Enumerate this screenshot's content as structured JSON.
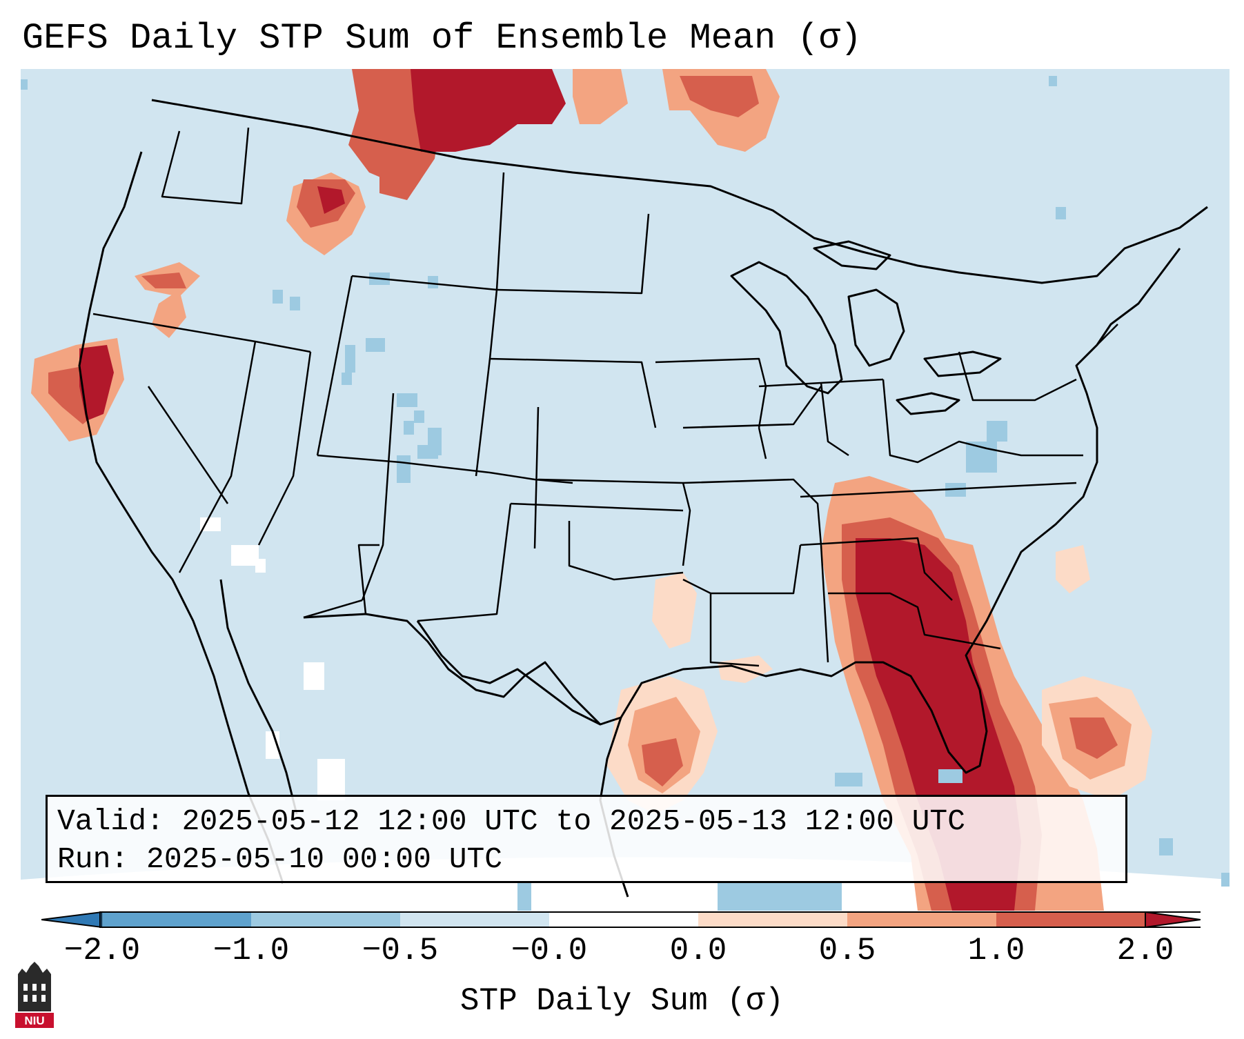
{
  "title": "GEFS Daily STP Sum of Ensemble Mean (σ)",
  "info": {
    "valid_label": "Valid:",
    "valid_value": "2025-05-12 12:00 UTC to 2025-05-13 12:00 UTC",
    "run_label": "Run:",
    "run_value": "2025-05-10 00:00 UTC"
  },
  "colorbar": {
    "label": "STP Daily Sum (σ)",
    "ticks": [
      "−2.0",
      "−1.0",
      "−0.5",
      "−0.0",
      "0.0",
      "0.5",
      "1.0",
      "2.0"
    ],
    "colors": [
      "#2f79b5",
      "#5fa2cd",
      "#9dcae1",
      "#d1e5f0",
      "#ffffff",
      "#fcdbc7",
      "#f3a481",
      "#d65f4d",
      "#b2182b"
    ]
  },
  "map_colors": {
    "background": "#d1e5f0",
    "state_lines": "#000000"
  },
  "logo": {
    "text": "NIU"
  }
}
